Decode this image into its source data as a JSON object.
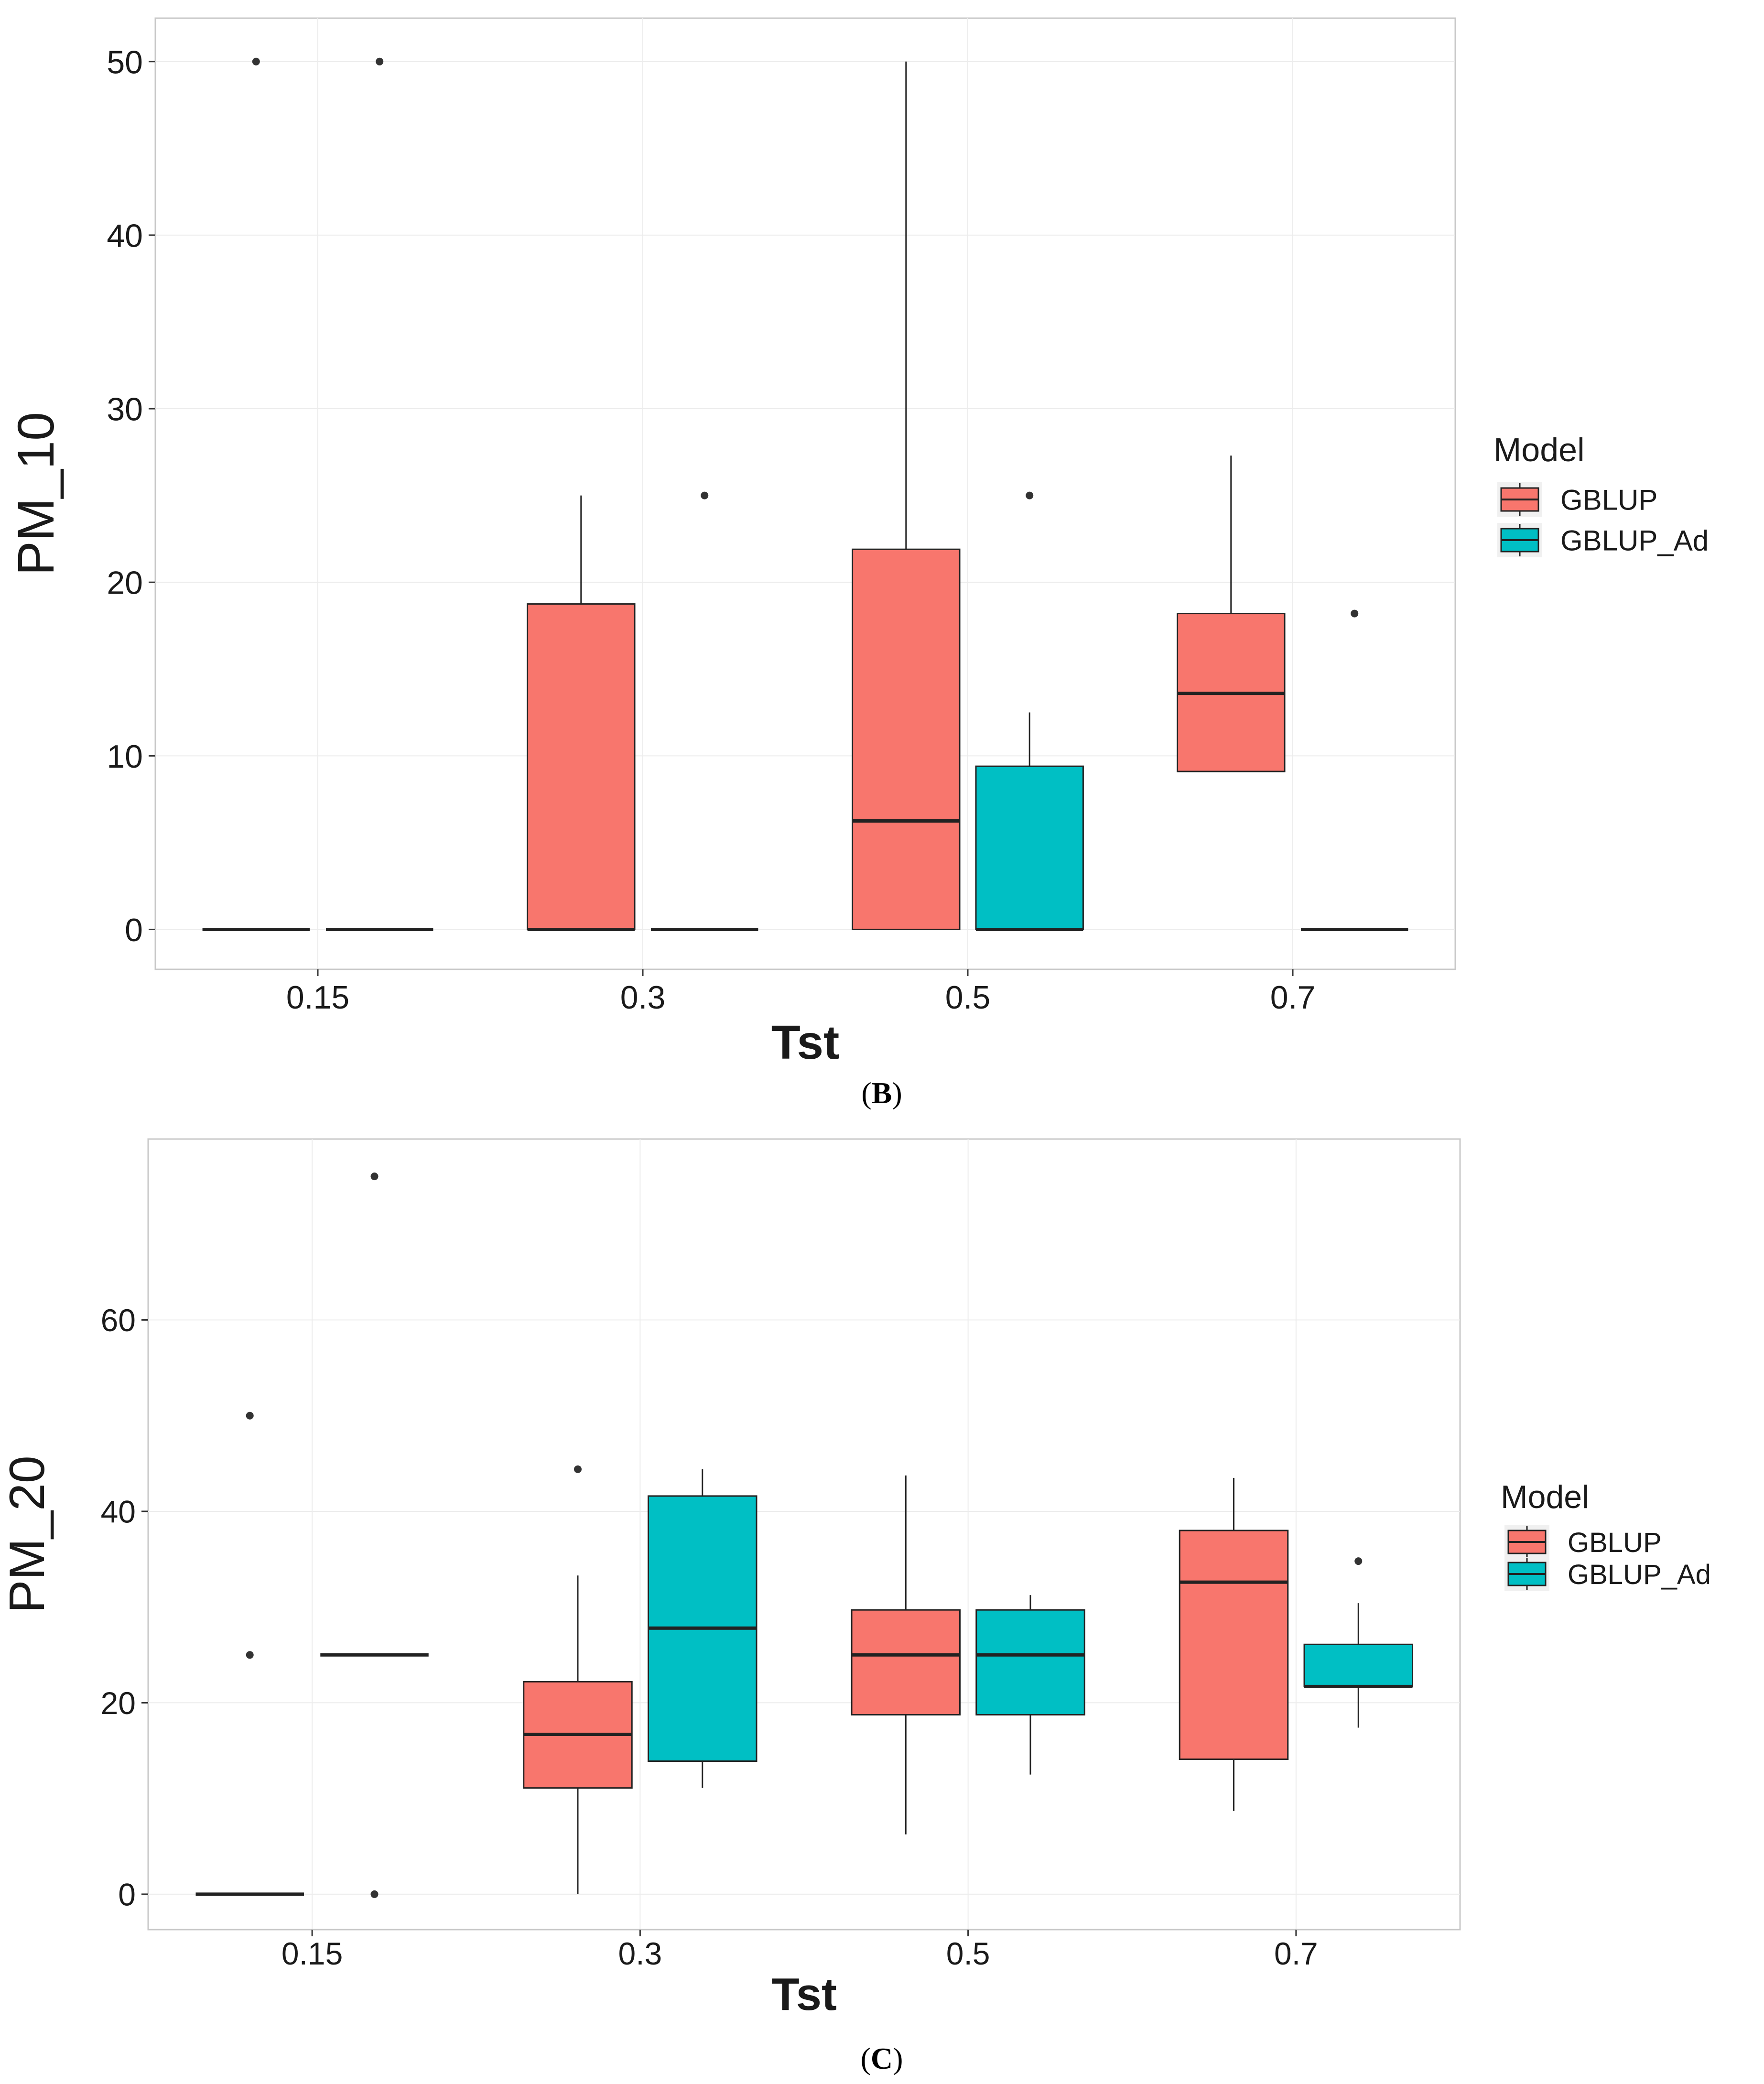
{
  "colors": {
    "gblup": "#F8766D",
    "gblup_ad": "#00BFC4",
    "panel_border": "#c8c8c8",
    "gridline": "#ececec",
    "ink": "#1a1a1a"
  },
  "chart_data": [
    {
      "type": "box",
      "xlabel": "Tst",
      "ylabel": "PM_10",
      "categories": [
        "0.15",
        "0.3",
        "0.5",
        "0.7"
      ],
      "ylim": [
        -2.3,
        52.5
      ],
      "yticks": [
        0,
        10,
        20,
        30,
        40,
        50
      ],
      "legend": {
        "title": "Model",
        "position": "right",
        "entries": [
          "GBLUP",
          "GBLUP_Ad"
        ]
      },
      "caption": {
        "open": "(",
        "letter": "B",
        "close": ")"
      },
      "series": [
        {
          "name": "GBLUP",
          "boxes": [
            {
              "category": "0.15",
              "min": 0,
              "q1": 0,
              "median": 0,
              "q3": 0,
              "max": 0,
              "outliers": [
                50
              ]
            },
            {
              "category": "0.3",
              "min": 0,
              "q1": 0,
              "median": 0,
              "q3": 18.75,
              "max": 25,
              "outliers": []
            },
            {
              "category": "0.5",
              "min": 0,
              "q1": 0,
              "median": 6.25,
              "q3": 21.9,
              "max": 50,
              "outliers": []
            },
            {
              "category": "0.7",
              "min": 9.1,
              "q1": 9.1,
              "median": 13.6,
              "q3": 18.2,
              "max": 27.3,
              "outliers": []
            }
          ]
        },
        {
          "name": "GBLUP_Ad",
          "boxes": [
            {
              "category": "0.15",
              "min": 0,
              "q1": 0,
              "median": 0,
              "q3": 0,
              "max": 0,
              "outliers": [
                50
              ]
            },
            {
              "category": "0.3",
              "min": 0,
              "q1": 0,
              "median": 0,
              "q3": 0,
              "max": 0,
              "outliers": [
                25
              ]
            },
            {
              "category": "0.5",
              "min": 0,
              "q1": 0,
              "median": 0,
              "q3": 9.4,
              "max": 12.5,
              "outliers": [
                25
              ]
            },
            {
              "category": "0.7",
              "min": 0,
              "q1": 0,
              "median": 0,
              "q3": 0,
              "max": 0,
              "outliers": [
                18.2
              ]
            }
          ]
        }
      ]
    },
    {
      "type": "box",
      "xlabel": "Tst",
      "ylabel": "PM_20",
      "categories": [
        "0.15",
        "0.3",
        "0.5",
        "0.7"
      ],
      "ylim": [
        -3.7,
        78.9
      ],
      "yticks": [
        0,
        20,
        40,
        60
      ],
      "legend": {
        "title": "Model",
        "position": "right",
        "entries": [
          "GBLUP",
          "GBLUP_Ad"
        ]
      },
      "caption": {
        "open": "(",
        "letter": "C",
        "close": ")"
      },
      "series": [
        {
          "name": "GBLUP",
          "boxes": [
            {
              "category": "0.15",
              "min": 0,
              "q1": 0,
              "median": 0,
              "q3": 0,
              "max": 0,
              "outliers": [
                50,
                25
              ]
            },
            {
              "category": "0.3",
              "min": 0,
              "q1": 11.1,
              "median": 16.7,
              "q3": 22.2,
              "max": 33.3,
              "outliers": [
                44.4
              ]
            },
            {
              "category": "0.5",
              "min": 6.25,
              "q1": 18.75,
              "median": 25,
              "q3": 29.7,
              "max": 43.75,
              "outliers": []
            },
            {
              "category": "0.7",
              "min": 8.7,
              "q1": 14.1,
              "median": 32.6,
              "q3": 38,
              "max": 43.5,
              "outliers": []
            }
          ]
        },
        {
          "name": "GBLUP_Ad",
          "boxes": [
            {
              "category": "0.15",
              "min": 25,
              "q1": 25,
              "median": 25,
              "q3": 25,
              "max": 25,
              "outliers": [
                75,
                0
              ]
            },
            {
              "category": "0.3",
              "min": 11.1,
              "q1": 13.9,
              "median": 27.8,
              "q3": 41.6,
              "max": 44.4,
              "outliers": []
            },
            {
              "category": "0.5",
              "min": 12.5,
              "q1": 18.75,
              "median": 25,
              "q3": 29.7,
              "max": 31.25,
              "outliers": []
            },
            {
              "category": "0.7",
              "min": 17.4,
              "q1": 21.7,
              "median": 21.7,
              "q3": 26.1,
              "max": 30.4,
              "outliers": [
                34.8
              ]
            }
          ]
        }
      ]
    }
  ]
}
